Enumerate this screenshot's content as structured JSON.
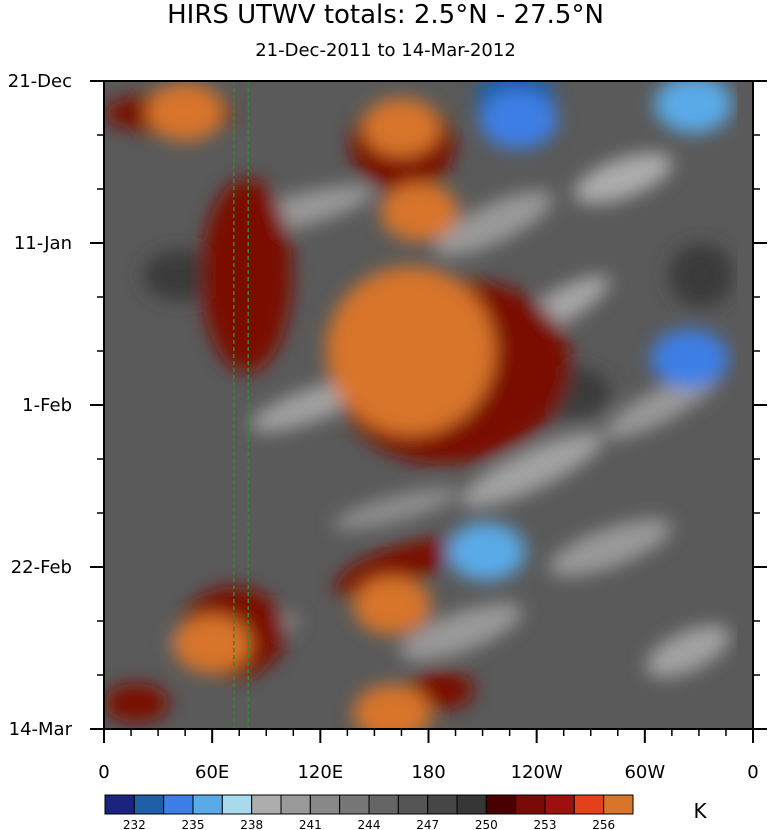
{
  "chart_data": {
    "type": "heatmap",
    "title": "HIRS UTWV totals: 2.5°N - 27.5°N",
    "subtitle": "21-Dec-2011 to 14-Mar-2012",
    "x_ticks": [
      "0",
      "60E",
      "120E",
      "180",
      "120W",
      "60W",
      "0"
    ],
    "x_tick_values": [
      0,
      60,
      120,
      180,
      240,
      300,
      360
    ],
    "y_ticks": [
      "21-Dec",
      "11-Jan",
      "1-Feb",
      "22-Feb",
      "14-Mar"
    ],
    "y_tick_days": [
      0,
      21,
      42,
      63,
      84
    ],
    "xlim": [
      0,
      360
    ],
    "ylim_days": [
      0,
      84
    ],
    "colorbar": {
      "labels": [
        "232",
        "235",
        "238",
        "241",
        "244",
        "247",
        "250",
        "253",
        "256"
      ],
      "levels": [
        232,
        233.5,
        235,
        236.5,
        238,
        239.5,
        241,
        242.5,
        244,
        245.5,
        247,
        248.5,
        250,
        251.5,
        253,
        254.5,
        256
      ],
      "colors": [
        "#1a237e",
        "#1f5fa8",
        "#3d7fe6",
        "#5aaae8",
        "#a9d9ec",
        "#adadad",
        "#9a9a9a",
        "#888888",
        "#777777",
        "#656565",
        "#555555",
        "#464646",
        "#363636",
        "#4a0000",
        "#7a0a06",
        "#9e0f0f",
        "#e4401a",
        "#d8752a"
      ],
      "unit": "K"
    },
    "reference_lines": [
      {
        "lon": 72,
        "color": "#2e8b2e"
      },
      {
        "lon": 80,
        "color": "#2e8b2e"
      }
    ],
    "features": [
      {
        "lon": 170,
        "day": 35,
        "value": 257,
        "note": "large warm core"
      },
      {
        "lon": 165,
        "day": 6,
        "value": 257
      },
      {
        "lon": 175,
        "day": 17,
        "value": 257
      },
      {
        "lon": 45,
        "day": 4,
        "value": 256
      },
      {
        "lon": 160,
        "day": 68,
        "value": 256
      },
      {
        "lon": 160,
        "day": 82,
        "value": 257
      },
      {
        "lon": 60,
        "day": 73,
        "value": 256
      },
      {
        "lon": 228,
        "day": 2,
        "value": 233
      },
      {
        "lon": 230,
        "day": 5,
        "value": 234
      },
      {
        "lon": 327,
        "day": 3,
        "value": 236
      },
      {
        "lon": 325,
        "day": 36,
        "value": 234
      },
      {
        "lon": 212,
        "day": 61,
        "value": 235
      }
    ]
  }
}
